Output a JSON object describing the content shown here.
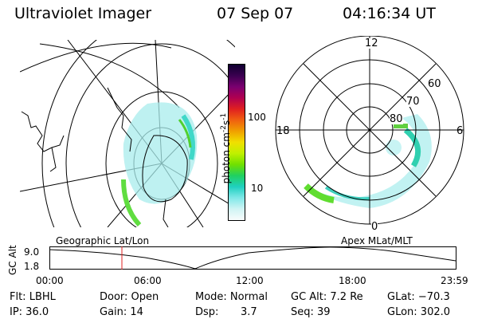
{
  "header": {
    "instrument": "Ultraviolet Imager",
    "date": "07 Sep 07",
    "time": "04:16:34 UT"
  },
  "colorbar": {
    "unit_label": "photon cm",
    "unit_exp": "-2",
    "unit_s": "s",
    "unit_s_exp": "-1",
    "ticks": [
      "100",
      "10"
    ],
    "colors": [
      "#100030",
      "#3a0050",
      "#7a0070",
      "#b00050",
      "#e02020",
      "#f06010",
      "#f0a000",
      "#f0e000",
      "#c0f000",
      "#70e000",
      "#20d060",
      "#20d0c0",
      "#80e8e8",
      "#d0f4f4",
      "#f8fcfc"
    ]
  },
  "polar_map": {
    "mlt_labels": {
      "top": "12",
      "left": "18",
      "right": "6",
      "bottom": "0"
    },
    "lat_labels": [
      "60",
      "70",
      "80"
    ]
  },
  "timeline": {
    "ylabel": "GC Alt",
    "yticks": [
      "9.0",
      "1.8"
    ],
    "left_title": "Geographic Lat/Lon",
    "right_title": "Apex MLat/MLT",
    "xticks": [
      "00:00",
      "06:00",
      "12:00",
      "18:00",
      "23:59"
    ],
    "marker_time": "04:16"
  },
  "info": {
    "flt": "Flt: LBHL",
    "ip": "IP: 36.0",
    "door": "Door: Open",
    "gain": "Gain: 14",
    "mode": "Mode: Normal",
    "dsp_label": "Dsp:",
    "dsp_value": "3.7",
    "gc_alt": "GC Alt: 7.2 Re",
    "seq": "Seq: 39",
    "glat": "GLat: −70.3",
    "glon": "GLon: 302.0"
  }
}
